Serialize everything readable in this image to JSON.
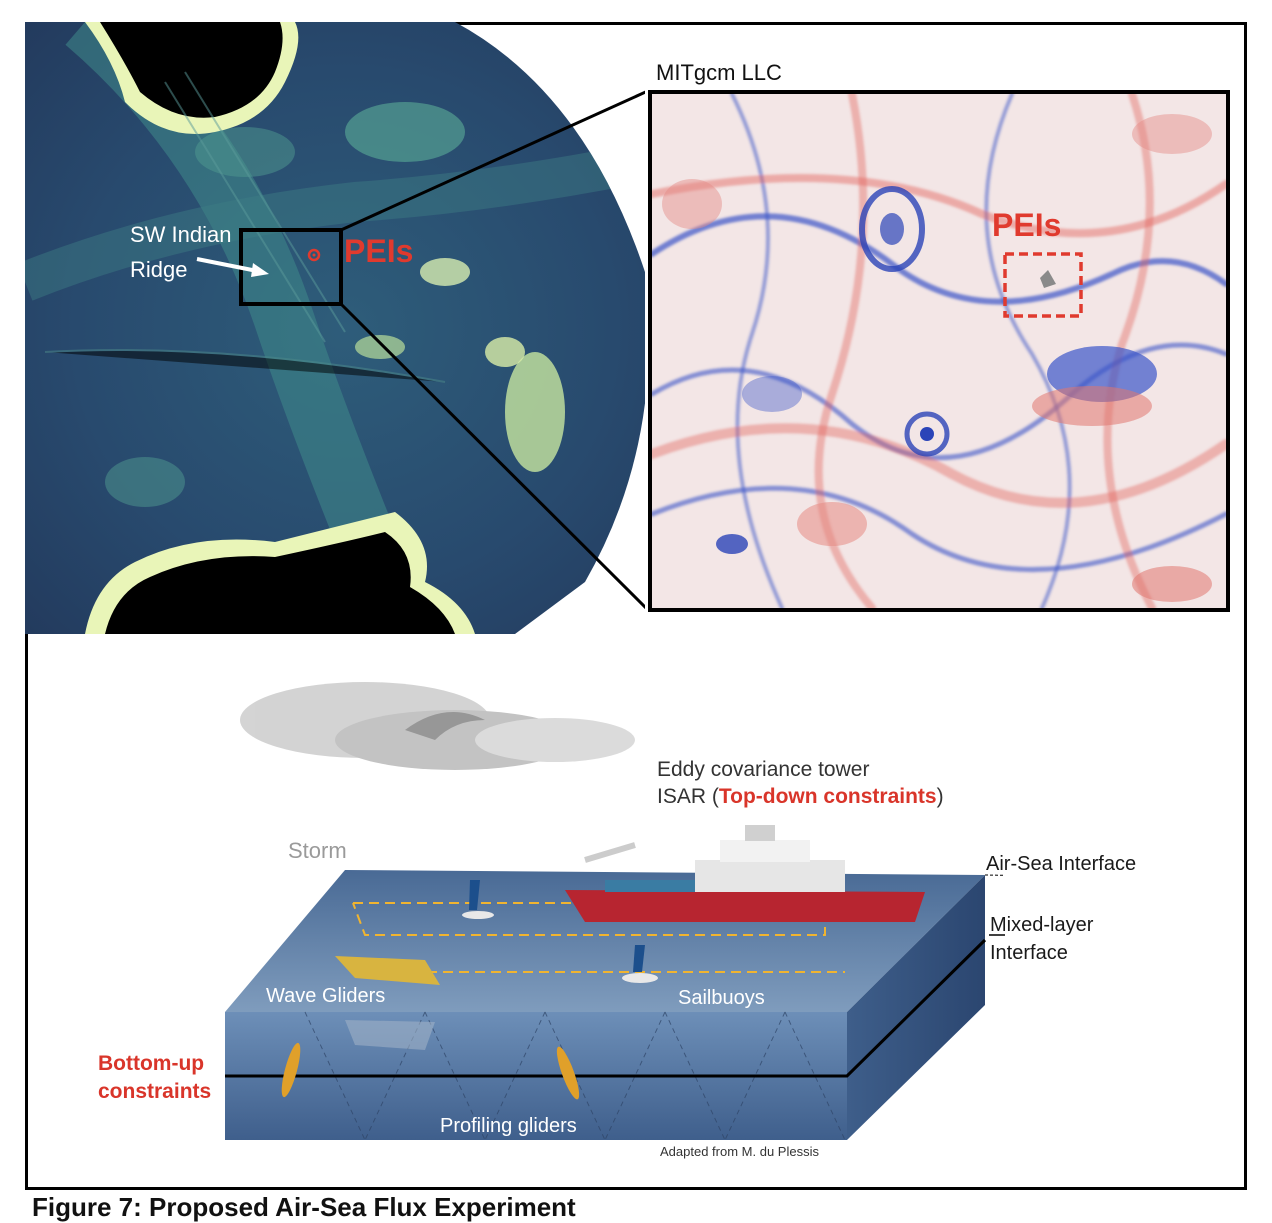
{
  "figure": {
    "map_panel": {
      "ridge_label": "SW Indian",
      "ridge_label_line2": "Ridge",
      "pei_label": "PEIs"
    },
    "sim_panel": {
      "title": "MITgcm LLC",
      "pei_label": "PEIs"
    },
    "schematic": {
      "eddy_tower": "Eddy covariance tower",
      "isar_prefix": "ISAR (",
      "top_down": "Top-down constraints",
      "isar_suffix": ")",
      "storm": "Storm",
      "air_sea": "Air-Sea Interface",
      "mixed_layer_1": "Mixed-layer",
      "mixed_layer_2": "Interface",
      "wave_gliders": "Wave Gliders",
      "sailbuoys": "Sailbuoys",
      "bottom_up_1": "Bottom-up",
      "bottom_up_2": "constraints",
      "profiling_gliders": "Profiling gliders",
      "credit": "Adapted from M. du Plessis"
    },
    "caption": "Figure 7: Proposed Air-Sea Flux Experiment"
  }
}
